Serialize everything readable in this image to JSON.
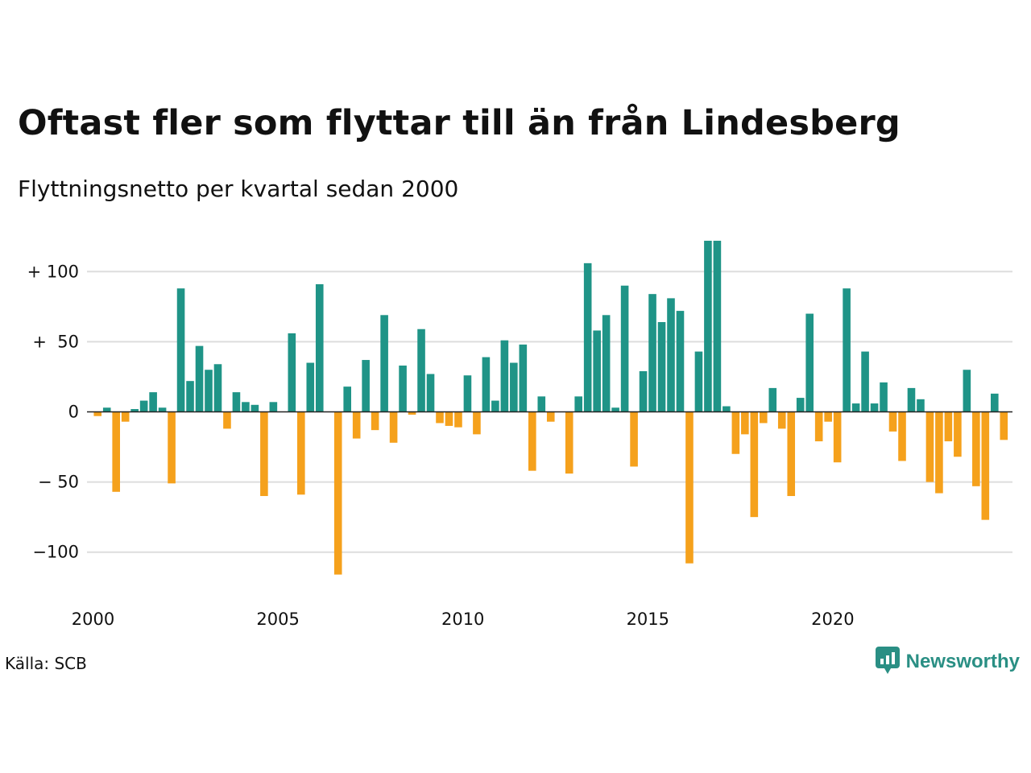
{
  "title": "Oftast fler som flyttar till än från Lindesberg",
  "subtitle": "Flyttningsnetto per kvartal sedan 2000",
  "source": "Källa: SCB",
  "brand": "Newsworthy",
  "colors": {
    "positive": "#1f9487",
    "negative": "#f5a11c",
    "grid": "#dddddd",
    "brand": "#2a8f84"
  },
  "chart_data": {
    "type": "bar",
    "title": "",
    "xlabel": "",
    "ylabel": "",
    "ylim": [
      -120,
      122
    ],
    "yticks": [
      {
        "value": 100,
        "label": "+ 100"
      },
      {
        "value": 50,
        "label": "+  50"
      },
      {
        "value": 0,
        "label": "0"
      },
      {
        "value": -50,
        "label": "− 50"
      },
      {
        "value": -100,
        "label": "−100"
      }
    ],
    "xticks": [
      "2000",
      "2005",
      "2010",
      "2015",
      "2020"
    ],
    "grid": true,
    "legend": "none",
    "x_start": "2000 Q1",
    "interval": "quarter",
    "values": [
      -3,
      3,
      -57,
      -7,
      2,
      8,
      14,
      3,
      -51,
      88,
      22,
      47,
      30,
      34,
      -12,
      14,
      7,
      5,
      -60,
      7,
      0,
      56,
      -59,
      35,
      91,
      0,
      -116,
      18,
      -19,
      37,
      -13,
      69,
      -22,
      33,
      -2,
      59,
      27,
      -8,
      -10,
      -11,
      26,
      -16,
      39,
      8,
      51,
      35,
      48,
      -42,
      11,
      -7,
      0,
      -44,
      11,
      106,
      58,
      69,
      3,
      90,
      -39,
      29,
      84,
      64,
      81,
      72,
      -108,
      43,
      122,
      122,
      4,
      -30,
      -16,
      -75,
      -8,
      17,
      -12,
      -60,
      10,
      70,
      -21,
      -7,
      -36,
      88,
      6,
      43,
      6,
      21,
      -14,
      -35,
      17,
      9,
      -50,
      -58,
      -21,
      -32,
      30,
      -53,
      -77,
      13,
      -20
    ]
  }
}
